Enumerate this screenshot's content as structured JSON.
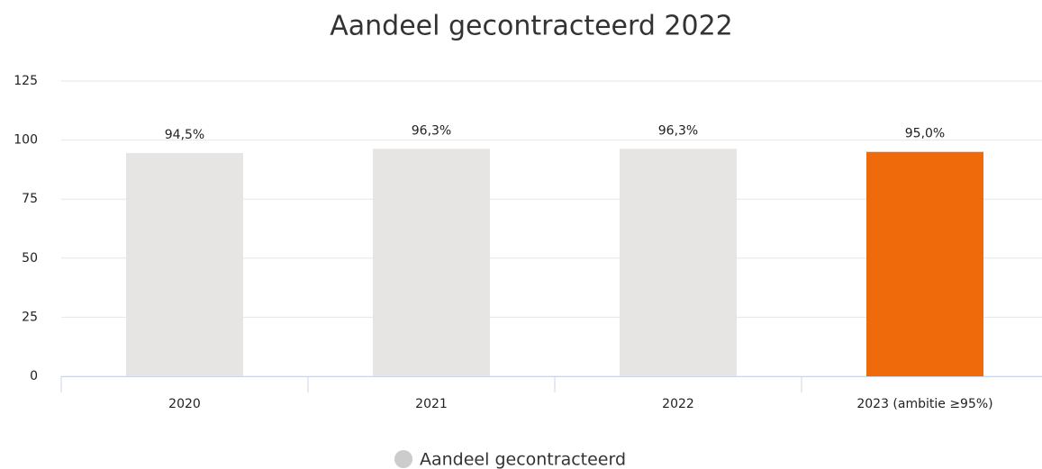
{
  "chart_data": {
    "type": "bar",
    "title": "Aandeel gecontracteerd 2022",
    "categories": [
      "2020",
      "2021",
      "2022",
      "2023 (ambitie ≥95%)"
    ],
    "series": [
      {
        "name": "Aandeel gecontracteerd",
        "color": "#cccccc",
        "values": [
          94.5,
          96.3,
          96.3,
          95.0
        ],
        "value_labels": [
          "94,5%",
          "96,3%",
          "96,3%",
          "95,0%"
        ],
        "colors": [
          "#e6e5e3",
          "#e6e5e3",
          "#e6e5e3",
          "#ee6a0a"
        ]
      }
    ],
    "ylim": [
      0,
      125
    ],
    "yticks": [
      0,
      25,
      50,
      75,
      100,
      125
    ],
    "grid": true,
    "legend": "bottom"
  }
}
